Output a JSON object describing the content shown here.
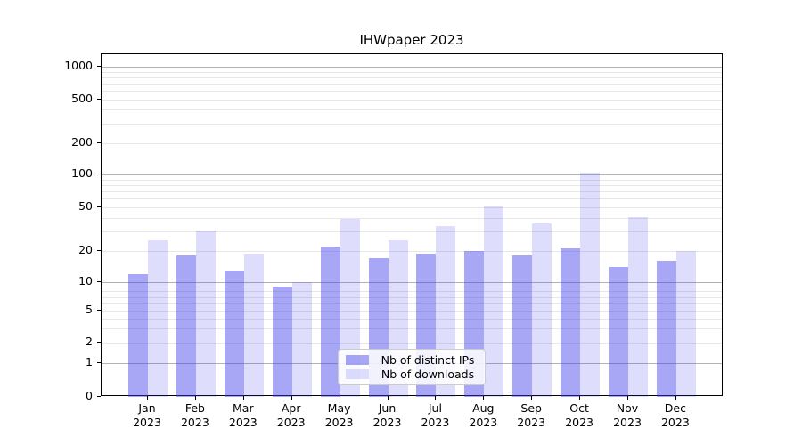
{
  "chart_data": {
    "type": "bar",
    "title": "IHWpaper 2023",
    "categories": [
      "Jan",
      "Feb",
      "Mar",
      "Apr",
      "May",
      "Jun",
      "Jul",
      "Aug",
      "Sep",
      "Oct",
      "Nov",
      "Dec"
    ],
    "category_year": "2023",
    "series": [
      {
        "name": "Nb of distinct IPs",
        "color": "rgba(60,60,235,0.45)",
        "values": [
          12,
          18,
          13,
          9,
          22,
          17,
          19,
          20,
          18,
          21,
          14,
          16
        ]
      },
      {
        "name": "Nb of downloads",
        "color": "rgba(60,60,235,0.17)",
        "values": [
          25,
          31,
          19,
          10,
          39,
          25,
          34,
          51,
          36,
          105,
          41,
          20
        ]
      }
    ],
    "y_axis": {
      "scale": "symlog",
      "ylim": [
        0,
        1200
      ],
      "tick_values": [
        0,
        1,
        2,
        5,
        10,
        20,
        50,
        100,
        200,
        500,
        1000
      ],
      "tick_labels": [
        "0",
        "1",
        "2",
        "5",
        "10",
        "20",
        "50",
        "100",
        "200",
        "500",
        "1000"
      ],
      "major_grid_values": [
        1,
        10,
        100,
        1000
      ],
      "minor_grid_values": [
        3,
        4,
        6,
        7,
        8,
        9,
        30,
        40,
        60,
        70,
        80,
        90,
        300,
        400,
        600,
        700,
        800,
        900
      ]
    },
    "legend": {
      "position": "lower center",
      "entries": [
        "Nb of distinct IPs",
        "Nb of downloads"
      ]
    },
    "grid": "on"
  },
  "colors": {
    "bar_ips_blended_hex": "#a7a7f6",
    "bar_downloads_blended_hex": "#dedefc",
    "major_gridline": "#b3b3b3",
    "minor_gridline": "#e7e7e7",
    "spine": "#000000"
  }
}
